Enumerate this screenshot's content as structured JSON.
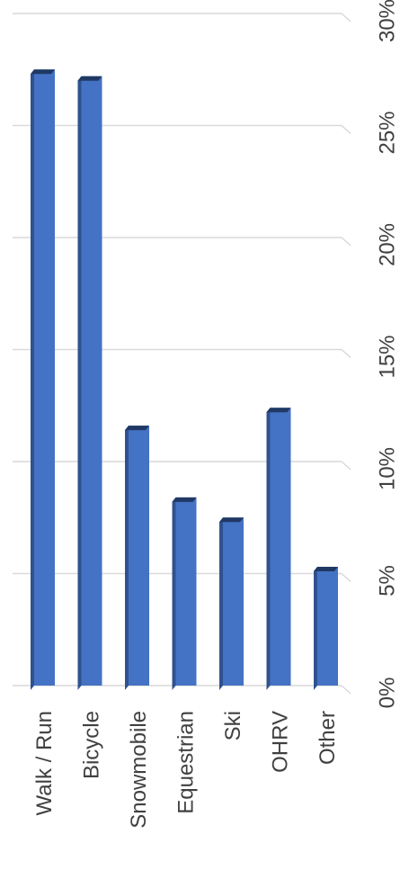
{
  "chart_data": {
    "type": "bar",
    "orientation": "rotated",
    "style": "3d",
    "categories": [
      "Walk / Run",
      "Bicycle",
      "Snowmobile",
      "Equestrian",
      "Ski",
      "OHRV",
      "Other"
    ],
    "values": [
      27.5,
      27.2,
      11.6,
      8.4,
      7.5,
      12.4,
      5.3
    ],
    "value_unit": "%",
    "ylim": [
      0,
      30
    ],
    "tick_labels": [
      "0%",
      "5%",
      "10%",
      "15%",
      "20%",
      "25%",
      "30%"
    ],
    "grid": true,
    "legend": "none",
    "title": "",
    "xlabel": "",
    "ylabel": "",
    "colors": {
      "bar_front": "#4472c4",
      "bar_side": "#2f528f",
      "bar_top": "#203864",
      "grid": "#d9d9d9",
      "text": "#404040"
    }
  }
}
